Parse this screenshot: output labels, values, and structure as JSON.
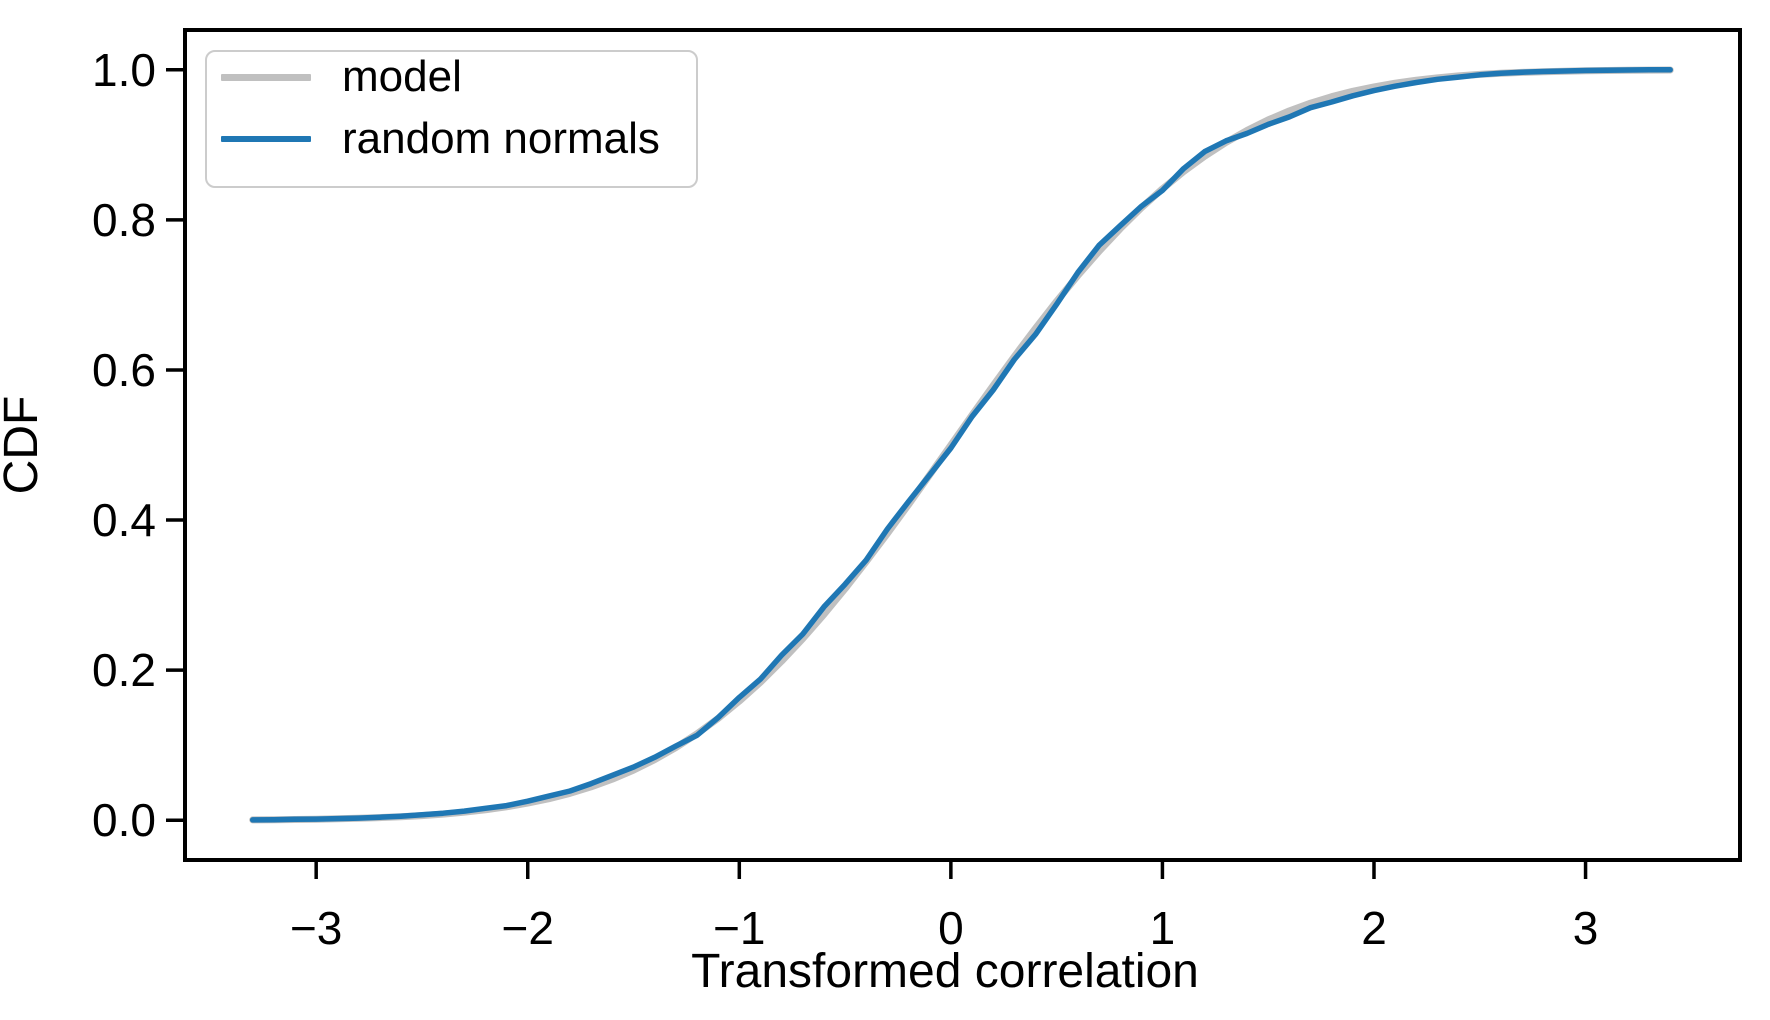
{
  "figure": {
    "background": "#ffffff",
    "text_color": "#000000"
  },
  "chart_data": {
    "type": "line",
    "title": "",
    "xlabel": "Transformed correlation",
    "ylabel": "CDF",
    "xlim": [
      -3.62,
      3.73
    ],
    "ylim": [
      -0.053,
      1.053
    ],
    "grid": false,
    "x_ticks": {
      "values": [
        -3,
        -2,
        -1,
        0,
        1,
        2,
        3
      ],
      "labels": [
        "−3",
        "−2",
        "−1",
        "0",
        "1",
        "2",
        "3"
      ]
    },
    "y_ticks": {
      "values": [
        0,
        0.2,
        0.4,
        0.6,
        0.8,
        1
      ],
      "labels": [
        "0.0",
        "0.2",
        "0.4",
        "0.6",
        "0.8",
        "1.0"
      ]
    },
    "legend": {
      "position": "upper left"
    },
    "x": [
      -3.3,
      -3.2,
      -3.1,
      -3.0,
      -2.9,
      -2.8,
      -2.7,
      -2.6,
      -2.5,
      -2.4,
      -2.3,
      -2.2,
      -2.1,
      -2.0,
      -1.9,
      -1.8,
      -1.7,
      -1.6,
      -1.5,
      -1.4,
      -1.3,
      -1.2,
      -1.1,
      -1.0,
      -0.9,
      -0.8,
      -0.7,
      -0.6,
      -0.5,
      -0.4,
      -0.3,
      -0.2,
      -0.1,
      0.0,
      0.1,
      0.2,
      0.3,
      0.4,
      0.5,
      0.6,
      0.7,
      0.8,
      0.9,
      1.0,
      1.1,
      1.2,
      1.3,
      1.4,
      1.5,
      1.6,
      1.7,
      1.8,
      1.9,
      2.0,
      2.1,
      2.2,
      2.3,
      2.4,
      2.5,
      2.6,
      2.7,
      2.8,
      2.9,
      3.0,
      3.1,
      3.2,
      3.3,
      3.4
    ],
    "series": [
      {
        "name": "model",
        "color": "#c0c0c0",
        "line_width": 7,
        "y": [
          0.0005,
          0.0007,
          0.001,
          0.0013,
          0.0019,
          0.0026,
          0.0035,
          0.0047,
          0.0062,
          0.0082,
          0.0107,
          0.0139,
          0.0179,
          0.0228,
          0.0287,
          0.0359,
          0.0446,
          0.0548,
          0.0668,
          0.0808,
          0.0968,
          0.1151,
          0.1357,
          0.1587,
          0.1841,
          0.2119,
          0.242,
          0.2743,
          0.3085,
          0.3446,
          0.3821,
          0.4207,
          0.4602,
          0.5,
          0.5398,
          0.5793,
          0.6179,
          0.6554,
          0.6915,
          0.7257,
          0.758,
          0.7881,
          0.8159,
          0.8413,
          0.8643,
          0.8849,
          0.9032,
          0.9192,
          0.9332,
          0.9452,
          0.9554,
          0.9641,
          0.9713,
          0.9772,
          0.9821,
          0.9861,
          0.9893,
          0.9918,
          0.9938,
          0.9953,
          0.9965,
          0.9974,
          0.9981,
          0.9987,
          0.999,
          0.9993,
          0.9995,
          0.9997
        ]
      },
      {
        "name": "random normals",
        "color": "#1f77b4",
        "line_width": 5.5,
        "y": [
          0.0005,
          0.0007,
          0.0012,
          0.0015,
          0.0022,
          0.0028,
          0.004,
          0.0053,
          0.0072,
          0.0094,
          0.0122,
          0.0159,
          0.0195,
          0.0253,
          0.0322,
          0.0389,
          0.0488,
          0.0598,
          0.0708,
          0.0838,
          0.0988,
          0.1131,
          0.1367,
          0.1637,
          0.1881,
          0.2199,
          0.248,
          0.2843,
          0.3145,
          0.3466,
          0.3881,
          0.4247,
          0.4602,
          0.496,
          0.5378,
          0.5733,
          0.6139,
          0.6474,
          0.6875,
          0.7297,
          0.766,
          0.7921,
          0.8179,
          0.8393,
          0.8683,
          0.8909,
          0.9052,
          0.9152,
          0.9272,
          0.9372,
          0.9494,
          0.9571,
          0.9653,
          0.9722,
          0.9781,
          0.9831,
          0.9873,
          0.9903,
          0.9933,
          0.9955,
          0.9968,
          0.9977,
          0.9984,
          0.999,
          0.9994,
          0.9997,
          0.9999,
          1.0
        ]
      }
    ]
  }
}
